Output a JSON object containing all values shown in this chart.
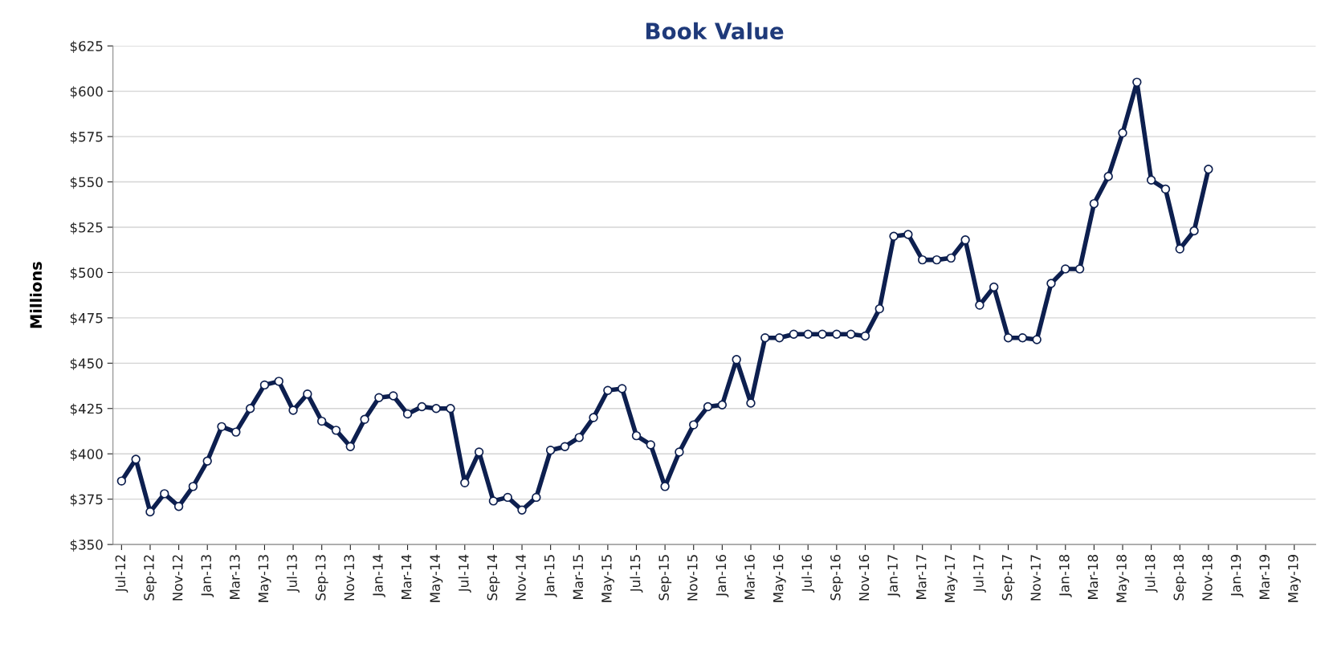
{
  "chart_data": {
    "type": "line",
    "title": "Book Value",
    "ylabel": "Millions",
    "categories": [
      "Jul-12",
      null,
      "Sep-12",
      null,
      "Nov-12",
      null,
      "Jan-13",
      null,
      "Mar-13",
      null,
      "May-13",
      null,
      "Jul-13",
      null,
      "Sep-13",
      null,
      "Nov-13",
      null,
      "Jan-14",
      null,
      "Mar-14",
      null,
      "May-14",
      null,
      "Jul-14",
      null,
      "Sep-14",
      null,
      "Nov-14",
      null,
      "Jan-15",
      null,
      "Mar-15",
      null,
      "May-15",
      null,
      "Jul-15",
      null,
      "Sep-15",
      null,
      "Nov-15",
      null,
      "Jan-16",
      null,
      "Mar-16",
      null,
      "May-16",
      null,
      "Jul-16",
      null,
      "Sep-16",
      null,
      "Nov-16",
      null,
      "Jan-17",
      null,
      "Mar-17",
      null,
      "May-17",
      null,
      "Jul-17",
      null,
      "Sep-17",
      null,
      "Nov-17",
      null,
      "Jan-18",
      null,
      "Mar-18",
      null,
      "May-18",
      null,
      "Jul-18",
      null,
      "Sep-18",
      null,
      "Nov-18",
      null,
      "Jan-19",
      null,
      "Mar-19",
      null,
      "May-19",
      null
    ],
    "series": [
      {
        "color": "#0d1f4f",
        "values": [
          385,
          397,
          368,
          378,
          371,
          382,
          396,
          415,
          412,
          425,
          438,
          440,
          424,
          433,
          418,
          413,
          404,
          419,
          431,
          432,
          422,
          426,
          425,
          425,
          384,
          401,
          374,
          376,
          369,
          376,
          402,
          404,
          409,
          420,
          435,
          436,
          410,
          405,
          382,
          401,
          416,
          426,
          427,
          452,
          428,
          464,
          464,
          466,
          466,
          466,
          466,
          466,
          465,
          480,
          520,
          521,
          507,
          507,
          508,
          518,
          482,
          492,
          464,
          464,
          463,
          494,
          502,
          502,
          538,
          553,
          577,
          605,
          551,
          546,
          513,
          523,
          557,
          null,
          null,
          null,
          null,
          null,
          null,
          null
        ]
      }
    ],
    "ylim": [
      350,
      625
    ],
    "yticks": [
      {
        "value": 350,
        "label": "$350"
      },
      {
        "value": 375,
        "label": "$375"
      },
      {
        "value": 400,
        "label": "$400"
      },
      {
        "value": 425,
        "label": "$425"
      },
      {
        "value": 450,
        "label": "$450"
      },
      {
        "value": 475,
        "label": "$475"
      },
      {
        "value": 500,
        "label": "$500"
      },
      {
        "value": 525,
        "label": "$525"
      },
      {
        "value": 550,
        "label": "$550"
      },
      {
        "value": 575,
        "label": "$575"
      },
      {
        "value": 600,
        "label": "$600"
      },
      {
        "value": 625,
        "label": "$625"
      }
    ],
    "grid": "y",
    "marker": "circle",
    "line_style": "solid"
  }
}
